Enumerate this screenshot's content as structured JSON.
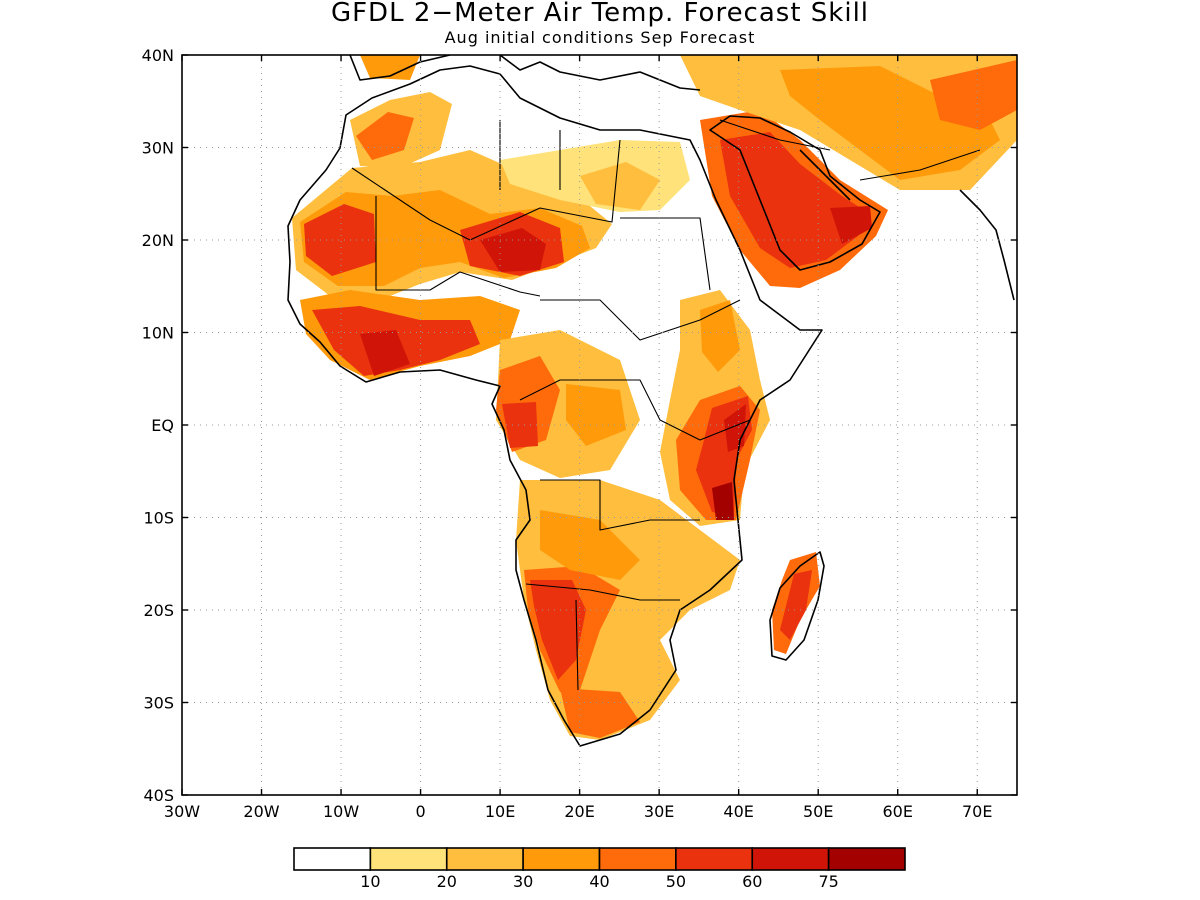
{
  "title": "GFDL 2−Meter Air Temp. Forecast Skill",
  "subtitle": "Aug initial conditions  Sep Forecast",
  "map": {
    "lon_range": [
      -30,
      75
    ],
    "lat_range": [
      -40,
      40
    ],
    "lon_ticks": [
      "30W",
      "20W",
      "10W",
      "0",
      "10E",
      "20E",
      "30E",
      "40E",
      "50E",
      "60E",
      "70E"
    ],
    "lat_ticks": [
      "40N",
      "30N",
      "20N",
      "10N",
      "EQ",
      "10S",
      "20S",
      "30S",
      "40S"
    ],
    "grid": "dotted",
    "coastlines_and_borders": true
  },
  "colorbar": {
    "bins": [
      {
        "color": "#ffffff"
      },
      {
        "color": "#ffe27a"
      },
      {
        "color": "#ffbe3d"
      },
      {
        "color": "#ff9a0a"
      },
      {
        "color": "#ff6a0a"
      },
      {
        "color": "#ea320f"
      },
      {
        "color": "#d01508"
      },
      {
        "color": "#a30000"
      }
    ],
    "labels": [
      "10",
      "20",
      "30",
      "40",
      "50",
      "60",
      "75"
    ]
  }
}
